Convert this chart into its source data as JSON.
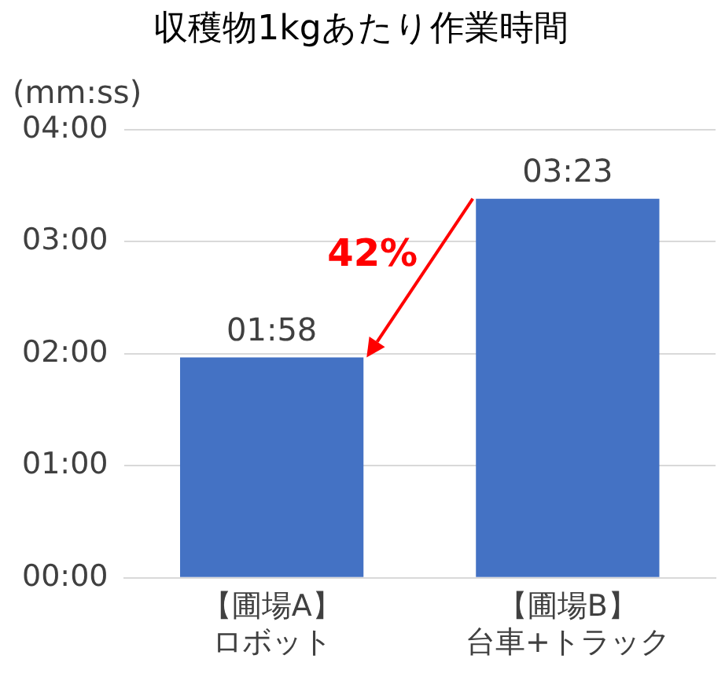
{
  "chart_data": {
    "type": "bar",
    "title": "収穫物1kgあたり作業時間",
    "ylabel": "(mm:ss)",
    "categories": [
      "【圃場A】ロボット",
      "【圃場B】台車+トラック"
    ],
    "values": [
      1.9667,
      3.3833
    ],
    "color": "#4472c4",
    "value_labels": [
      "01:58",
      "03:23"
    ],
    "ylim": [
      0,
      4
    ],
    "yticks": [
      {
        "value": 0,
        "label": "00:00"
      },
      {
        "value": 1,
        "label": "01:00"
      },
      {
        "value": 2,
        "label": "02:00"
      },
      {
        "value": 3,
        "label": "03:00"
      },
      {
        "value": 4,
        "label": "04:00"
      }
    ],
    "grid": "y",
    "legend": false,
    "annotations": [
      "42%"
    ]
  }
}
